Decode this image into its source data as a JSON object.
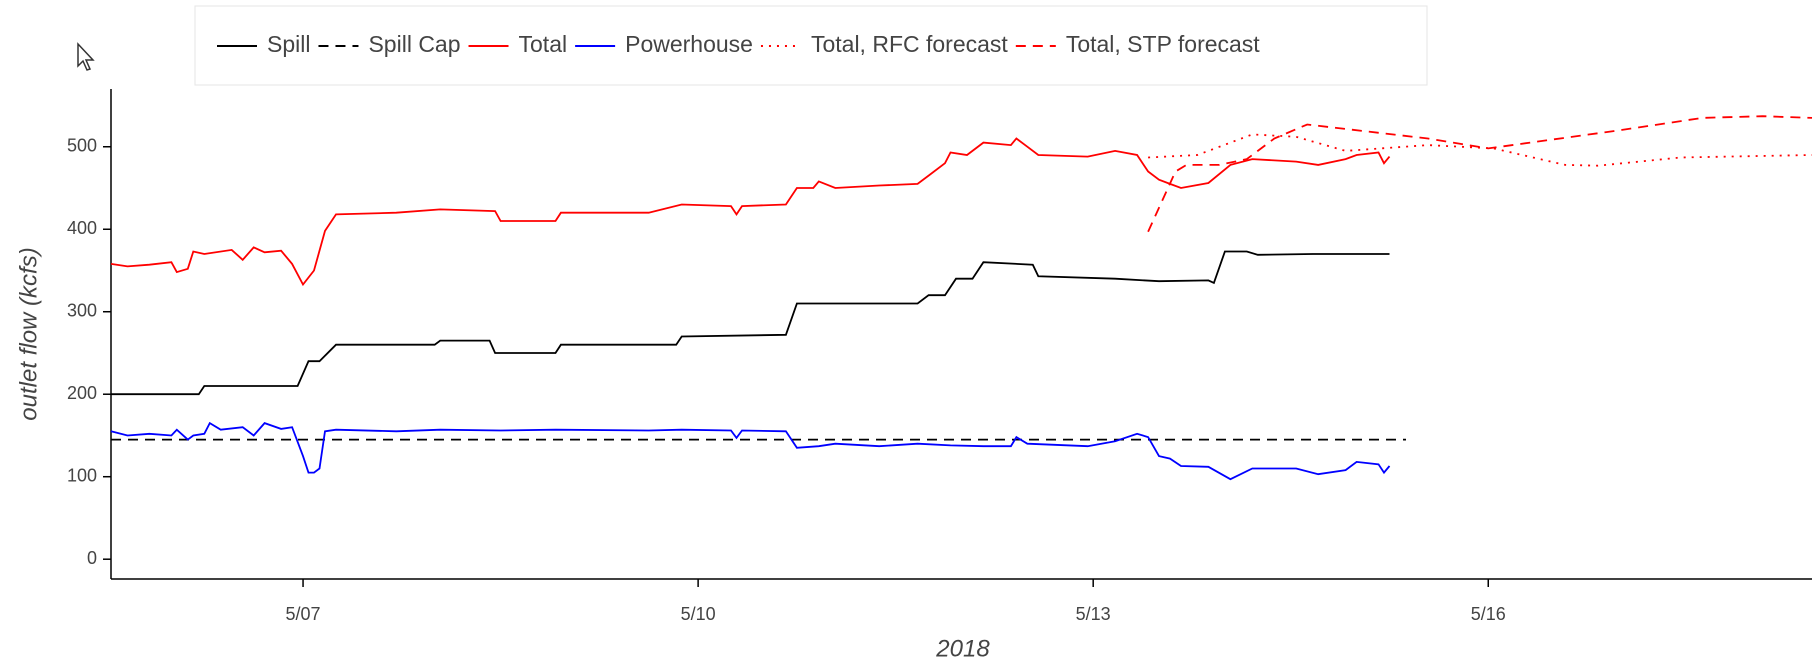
{
  "chart_data": {
    "type": "line",
    "xlabel": "2018",
    "ylabel": "outlet flow (kcfs)",
    "xlim": [
      "2018-05-05T13:00",
      "2018-05-18T11:00"
    ],
    "xticks": [
      {
        "value": "2018-05-07T00:00",
        "label": "5/07"
      },
      {
        "value": "2018-05-10T00:00",
        "label": "5/10"
      },
      {
        "value": "2018-05-13T00:00",
        "label": "5/13"
      },
      {
        "value": "2018-05-16T00:00",
        "label": "5/16"
      }
    ],
    "ylim": [
      -24,
      570
    ],
    "yticks": [
      0,
      100,
      200,
      300,
      400,
      500
    ],
    "series": [
      {
        "name": "Spill",
        "color": "#000000",
        "dash": "solid",
        "x": [
          "2018-05-05T13:00",
          "2018-05-06T05:00",
          "2018-05-06T06:00",
          "2018-05-06T23:00",
          "2018-05-07T01:00",
          "2018-05-07T03:00",
          "2018-05-07T06:00",
          "2018-05-08T00:00",
          "2018-05-08T01:00",
          "2018-05-08T10:00",
          "2018-05-08T11:00",
          "2018-05-08T22:00",
          "2018-05-08T23:00",
          "2018-05-09T20:00",
          "2018-05-09T21:00",
          "2018-05-10T16:00",
          "2018-05-10T18:00",
          "2018-05-11T16:00",
          "2018-05-11T18:00",
          "2018-05-11T21:00",
          "2018-05-11T23:00",
          "2018-05-12T02:00",
          "2018-05-12T04:00",
          "2018-05-12T13:00",
          "2018-05-12T14:00",
          "2018-05-13T04:00",
          "2018-05-13T12:00",
          "2018-05-13T21:00",
          "2018-05-13T22:00",
          "2018-05-14T00:00",
          "2018-05-14T04:00",
          "2018-05-14T06:00",
          "2018-05-14T16:00",
          "2018-05-15T06:00"
        ],
        "values": [
          200,
          200,
          210,
          210,
          240,
          240,
          260,
          260,
          265,
          265,
          250,
          250,
          260,
          260,
          270,
          272,
          310,
          310,
          320,
          320,
          340,
          340,
          360,
          357,
          343,
          340,
          337,
          338,
          335,
          373,
          373,
          369,
          370,
          370
        ]
      },
      {
        "name": "Spill Cap",
        "color": "#000000",
        "dash": "dashed",
        "x": [
          "2018-05-05T13:00",
          "2018-05-15T09:00"
        ],
        "values": [
          145,
          145
        ]
      },
      {
        "name": "Total",
        "color": "#ff0000",
        "dash": "solid",
        "x": [
          "2018-05-05T13:00",
          "2018-05-05T16:00",
          "2018-05-05T20:00",
          "2018-05-06T00:00",
          "2018-05-06T01:00",
          "2018-05-06T03:00",
          "2018-05-06T04:00",
          "2018-05-06T06:00",
          "2018-05-06T11:00",
          "2018-05-06T13:00",
          "2018-05-06T15:00",
          "2018-05-06T17:00",
          "2018-05-06T20:00",
          "2018-05-06T22:00",
          "2018-05-07T00:00",
          "2018-05-07T02:00",
          "2018-05-07T04:00",
          "2018-05-07T06:00",
          "2018-05-07T17:00",
          "2018-05-08T01:00",
          "2018-05-08T11:00",
          "2018-05-08T12:00",
          "2018-05-08T22:00",
          "2018-05-08T23:00",
          "2018-05-09T15:00",
          "2018-05-09T21:00",
          "2018-05-10T06:00",
          "2018-05-10T07:00",
          "2018-05-10T08:00",
          "2018-05-10T16:00",
          "2018-05-10T18:00",
          "2018-05-10T21:00",
          "2018-05-10T22:00",
          "2018-05-11T01:00",
          "2018-05-11T09:00",
          "2018-05-11T16:00",
          "2018-05-11T18:00",
          "2018-05-11T21:00",
          "2018-05-11T22:00",
          "2018-05-12T01:00",
          "2018-05-12T04:00",
          "2018-05-12T09:00",
          "2018-05-12T10:00",
          "2018-05-12T12:00",
          "2018-05-12T14:00",
          "2018-05-12T23:00",
          "2018-05-13T04:00",
          "2018-05-13T08:00",
          "2018-05-13T10:00",
          "2018-05-13T12:00",
          "2018-05-13T14:00",
          "2018-05-13T16:00",
          "2018-05-13T21:00",
          "2018-05-14T01:00",
          "2018-05-14T05:00",
          "2018-05-14T13:00",
          "2018-05-14T17:00",
          "2018-05-14T22:00",
          "2018-05-15T00:00",
          "2018-05-15T04:00",
          "2018-05-15T05:00",
          "2018-05-15T06:00"
        ],
        "values": [
          358,
          355,
          357,
          360,
          348,
          352,
          373,
          370,
          375,
          363,
          378,
          372,
          374,
          358,
          333,
          350,
          398,
          418,
          420,
          424,
          422,
          410,
          410,
          420,
          420,
          430,
          428,
          418,
          428,
          430,
          450,
          450,
          458,
          450,
          453,
          455,
          465,
          480,
          493,
          490,
          505,
          502,
          510,
          500,
          490,
          488,
          495,
          490,
          470,
          460,
          455,
          450,
          456,
          478,
          485,
          482,
          478,
          485,
          490,
          493,
          480,
          488
        ]
      },
      {
        "name": "Powerhouse",
        "color": "#0000ff",
        "dash": "solid",
        "x": [
          "2018-05-05T13:00",
          "2018-05-05T16:00",
          "2018-05-05T20:00",
          "2018-05-06T00:00",
          "2018-05-06T01:00",
          "2018-05-06T03:00",
          "2018-05-06T04:00",
          "2018-05-06T06:00",
          "2018-05-06T07:00",
          "2018-05-06T09:00",
          "2018-05-06T13:00",
          "2018-05-06T15:00",
          "2018-05-06T17:00",
          "2018-05-06T20:00",
          "2018-05-06T22:00",
          "2018-05-07T00:00",
          "2018-05-07T01:00",
          "2018-05-07T02:00",
          "2018-05-07T03:00",
          "2018-05-07T04:00",
          "2018-05-07T06:00",
          "2018-05-07T17:00",
          "2018-05-08T01:00",
          "2018-05-08T12:00",
          "2018-05-08T22:00",
          "2018-05-09T15:00",
          "2018-05-09T21:00",
          "2018-05-10T06:00",
          "2018-05-10T07:00",
          "2018-05-10T08:00",
          "2018-05-10T16:00",
          "2018-05-10T18:00",
          "2018-05-10T22:00",
          "2018-05-11T01:00",
          "2018-05-11T09:00",
          "2018-05-11T16:00",
          "2018-05-11T22:00",
          "2018-05-12T04:00",
          "2018-05-12T09:00",
          "2018-05-12T10:00",
          "2018-05-12T12:00",
          "2018-05-12T23:00",
          "2018-05-13T04:00",
          "2018-05-13T08:00",
          "2018-05-13T10:00",
          "2018-05-13T12:00",
          "2018-05-13T14:00",
          "2018-05-13T16:00",
          "2018-05-13T21:00",
          "2018-05-14T01:00",
          "2018-05-14T05:00",
          "2018-05-14T13:00",
          "2018-05-14T17:00",
          "2018-05-14T22:00",
          "2018-05-15T00:00",
          "2018-05-15T04:00",
          "2018-05-15T05:00",
          "2018-05-15T06:00"
        ],
        "values": [
          155,
          150,
          152,
          150,
          157,
          145,
          150,
          152,
          165,
          157,
          160,
          150,
          165,
          158,
          160,
          125,
          105,
          105,
          110,
          155,
          157,
          155,
          157,
          156,
          157,
          156,
          157,
          156,
          147,
          156,
          155,
          135,
          137,
          140,
          137,
          140,
          138,
          137,
          137,
          148,
          140,
          137,
          143,
          152,
          148,
          125,
          122,
          113,
          112,
          97,
          110,
          110,
          103,
          108,
          118,
          115,
          105,
          113
        ]
      },
      {
        "name": "Total, RFC forecast",
        "color": "#ff0000",
        "dash": "dotted",
        "x": [
          "2018-05-13T10:00",
          "2018-05-13T19:00",
          "2018-05-14T05:00",
          "2018-05-14T13:00",
          "2018-05-14T22:00",
          "2018-05-15T13:00",
          "2018-05-16T01:00",
          "2018-05-16T14:00",
          "2018-05-16T20:00",
          "2018-05-17T11:00",
          "2018-05-18T11:00"
        ],
        "values": [
          487,
          490,
          515,
          512,
          495,
          502,
          498,
          478,
          477,
          487,
          490
        ]
      },
      {
        "name": "Total, STP forecast",
        "color": "#ff0000",
        "dash": "dashed",
        "x": [
          "2018-05-13T10:00",
          "2018-05-13T15:00",
          "2018-05-13T17:00",
          "2018-05-13T23:00",
          "2018-05-14T04:00",
          "2018-05-14T09:00",
          "2018-05-14T15:00",
          "2018-05-15T13:00",
          "2018-05-16T00:00",
          "2018-05-17T00:00",
          "2018-05-17T15:00",
          "2018-05-18T02:00",
          "2018-05-18T11:00"
        ],
        "values": [
          397,
          470,
          478,
          478,
          485,
          510,
          527,
          510,
          498,
          520,
          535,
          537,
          535
        ]
      }
    ]
  }
}
